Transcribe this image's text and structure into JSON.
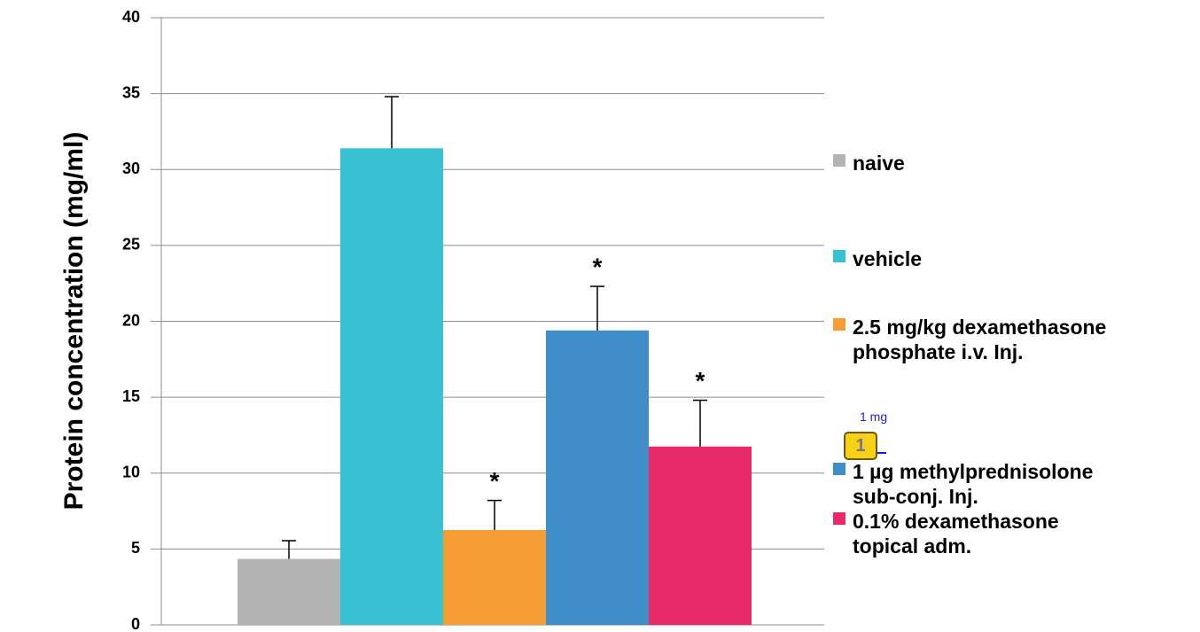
{
  "chart_data": {
    "type": "bar",
    "y_label": "Protein concentration (mg/ml)",
    "ylim": [
      0,
      40
    ],
    "yticks": [
      0,
      5,
      10,
      15,
      20,
      25,
      30,
      35,
      40
    ],
    "grid": true,
    "series": [
      {
        "name": "naive",
        "color": "#b3b3b3",
        "values": [
          4.35
        ],
        "errors": [
          1.2
        ],
        "marker": null
      },
      {
        "name": "vehicle",
        "color": "#38c2d3",
        "values": [
          31.4
        ],
        "errors": [
          3.4
        ],
        "marker": null
      },
      {
        "name": "2.5 mg/kg dexamethasone\nphosphate i.v.  Inj.",
        "color": "#f59c34",
        "values": [
          6.25
        ],
        "errors": [
          1.95
        ],
        "marker": "*"
      },
      {
        "name": "1 µg methylprednisolone\nsub-conj. Inj.",
        "color": "#3f8dc9",
        "values": [
          19.4
        ],
        "errors": [
          2.9
        ],
        "marker": "*"
      },
      {
        "name": "0.1% dexamethasone\ntopical adm.",
        "color": "#e8296a",
        "values": [
          11.75
        ],
        "errors": [
          3.05
        ],
        "marker": "*"
      }
    ],
    "comment": {
      "number": "1",
      "text": "1 mg"
    }
  }
}
